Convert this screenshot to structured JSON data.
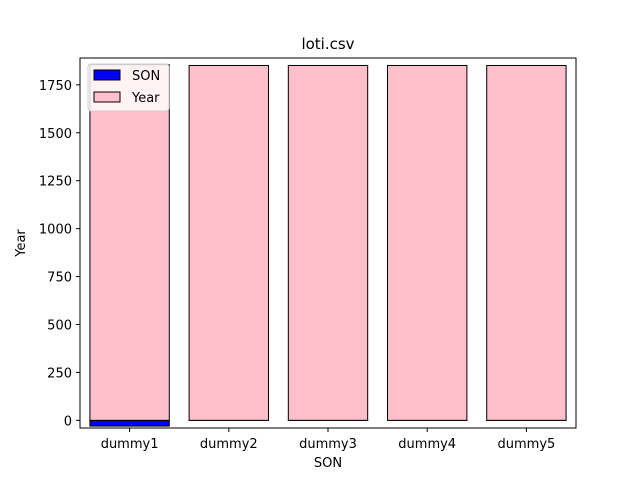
{
  "chart_data": {
    "type": "bar",
    "title": "loti.csv",
    "xlabel": "SON",
    "ylabel": "Year",
    "categories": [
      "dummy1",
      "dummy2",
      "dummy3",
      "dummy4",
      "dummy5"
    ],
    "series": [
      {
        "name": "SON",
        "values": [
          -30,
          0,
          0,
          0,
          0
        ],
        "color": "#0000ff"
      },
      {
        "name": "Year",
        "values": [
          1855,
          1851,
          1851,
          1851,
          1851
        ],
        "color": "#ffc0cb"
      }
    ],
    "ylim": [
      -40,
      1890
    ],
    "yticks": [
      0,
      250,
      500,
      750,
      1000,
      1250,
      1500,
      1750
    ],
    "legend_position": "top-left",
    "grid": false,
    "edge_color": "#000000"
  }
}
